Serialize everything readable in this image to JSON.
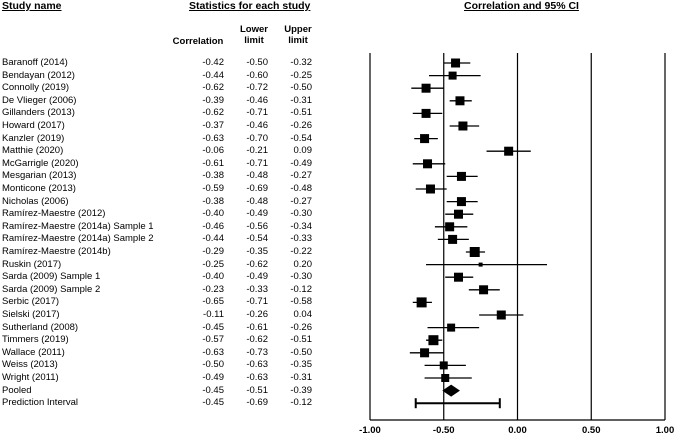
{
  "headers": {
    "study_name": "Study name",
    "statistics": "Statistics for each study",
    "ci": "Correlation and 95% CI",
    "col_correlation": "Correlation",
    "col_lower_1": "Lower",
    "col_lower_2": "limit",
    "col_upper_1": "Upper",
    "col_upper_2": "limit"
  },
  "chart_data": {
    "type": "forest",
    "title": "Correlation and 95% CI",
    "xlim": [
      -1.0,
      1.0
    ],
    "xticks": [
      "-1.00",
      "-0.50",
      "0.00",
      "0.50",
      "1.00"
    ],
    "xtick_values": [
      -1.0,
      -0.5,
      0.0,
      0.5,
      1.0
    ],
    "studies": [
      {
        "name": "Baranoff (2014)",
        "correlation": -0.42,
        "lower": -0.5,
        "upper": -0.32,
        "r": "-0.42",
        "lo": "-0.50",
        "hi": "-0.32",
        "box": 9
      },
      {
        "name": "Bendayan (2012)",
        "correlation": -0.44,
        "lower": -0.6,
        "upper": -0.25,
        "r": "-0.44",
        "lo": "-0.60",
        "hi": "-0.25",
        "box": 8
      },
      {
        "name": "Connolly (2019)",
        "correlation": -0.62,
        "lower": -0.72,
        "upper": -0.5,
        "r": "-0.62",
        "lo": "-0.72",
        "hi": "-0.50",
        "box": 9
      },
      {
        "name": "De Vlieger (2006)",
        "correlation": -0.39,
        "lower": -0.46,
        "upper": -0.31,
        "r": "-0.39",
        "lo": "-0.46",
        "hi": "-0.31",
        "box": 9
      },
      {
        "name": "Gillanders (2013)",
        "correlation": -0.62,
        "lower": -0.71,
        "upper": -0.51,
        "r": "-0.62",
        "lo": "-0.71",
        "hi": "-0.51",
        "box": 9
      },
      {
        "name": "Howard (2017)",
        "correlation": -0.37,
        "lower": -0.46,
        "upper": -0.26,
        "r": "-0.37",
        "lo": "-0.46",
        "hi": "-0.26",
        "box": 9
      },
      {
        "name": "Kanzler (2019)",
        "correlation": -0.63,
        "lower": -0.7,
        "upper": -0.54,
        "r": "-0.63",
        "lo": "-0.70",
        "hi": "-0.54",
        "box": 9
      },
      {
        "name": "Matthie (2020)",
        "correlation": -0.06,
        "lower": -0.21,
        "upper": 0.09,
        "r": "-0.06",
        "lo": "-0.21",
        "hi": "0.09",
        "box": 9
      },
      {
        "name": "McGarrigle (2020)",
        "correlation": -0.61,
        "lower": -0.71,
        "upper": -0.49,
        "r": "-0.61",
        "lo": "-0.71",
        "hi": "-0.49",
        "box": 9
      },
      {
        "name": "Mesgarian (2013)",
        "correlation": -0.38,
        "lower": -0.48,
        "upper": -0.27,
        "r": "-0.38",
        "lo": "-0.48",
        "hi": "-0.27",
        "box": 9
      },
      {
        "name": "Monticone (2013)",
        "correlation": -0.59,
        "lower": -0.69,
        "upper": -0.48,
        "r": "-0.59",
        "lo": "-0.69",
        "hi": "-0.48",
        "box": 9
      },
      {
        "name": "Nicholas (2006)",
        "correlation": -0.38,
        "lower": -0.48,
        "upper": -0.27,
        "r": "-0.38",
        "lo": "-0.48",
        "hi": "-0.27",
        "box": 9
      },
      {
        "name": "Ramírez-Maestre (2012)",
        "correlation": -0.4,
        "lower": -0.49,
        "upper": -0.3,
        "r": "-0.40",
        "lo": "-0.49",
        "hi": "-0.30",
        "box": 9
      },
      {
        "name": "Ramírez-Maestre (2014a) Sample 1",
        "correlation": -0.46,
        "lower": -0.56,
        "upper": -0.34,
        "r": "-0.46",
        "lo": "-0.56",
        "hi": "-0.34",
        "box": 9
      },
      {
        "name": "Ramírez-Maestre (2014a) Sample 2",
        "correlation": -0.44,
        "lower": -0.54,
        "upper": -0.33,
        "r": "-0.44",
        "lo": "-0.54",
        "hi": "-0.33",
        "box": 9
      },
      {
        "name": "Ramírez-Maestre (2014b)",
        "correlation": -0.29,
        "lower": -0.35,
        "upper": -0.22,
        "r": "-0.29",
        "lo": "-0.35",
        "hi": "-0.22",
        "box": 10
      },
      {
        "name": "Ruskin (2017)",
        "correlation": -0.25,
        "lower": -0.62,
        "upper": 0.2,
        "r": "-0.25",
        "lo": "-0.62",
        "hi": "0.20",
        "box": 4
      },
      {
        "name": "Sarda (2009) Sample 1",
        "correlation": -0.4,
        "lower": -0.49,
        "upper": -0.3,
        "r": "-0.40",
        "lo": "-0.49",
        "hi": "-0.30",
        "box": 9
      },
      {
        "name": "Sarda (2009) Sample 2",
        "correlation": -0.23,
        "lower": -0.33,
        "upper": -0.12,
        "r": "-0.23",
        "lo": "-0.33",
        "hi": "-0.12",
        "box": 9
      },
      {
        "name": "Serbic (2017)",
        "correlation": -0.65,
        "lower": -0.71,
        "upper": -0.58,
        "r": "-0.65",
        "lo": "-0.71",
        "hi": "-0.58",
        "box": 10
      },
      {
        "name": "Sielski (2017)",
        "correlation": -0.11,
        "lower": -0.26,
        "upper": 0.04,
        "r": "-0.11",
        "lo": "-0.26",
        "hi": "0.04",
        "box": 9
      },
      {
        "name": "Sutherland (2008)",
        "correlation": -0.45,
        "lower": -0.61,
        "upper": -0.26,
        "r": "-0.45",
        "lo": "-0.61",
        "hi": "-0.26",
        "box": 8
      },
      {
        "name": "Timmers (2019)",
        "correlation": -0.57,
        "lower": -0.62,
        "upper": -0.51,
        "r": "-0.57",
        "lo": "-0.62",
        "hi": "-0.51",
        "box": 10
      },
      {
        "name": "Wallace (2011)",
        "correlation": -0.63,
        "lower": -0.73,
        "upper": -0.5,
        "r": "-0.63",
        "lo": "-0.73",
        "hi": "-0.50",
        "box": 9
      },
      {
        "name": "Weiss (2013)",
        "correlation": -0.5,
        "lower": -0.63,
        "upper": -0.35,
        "r": "-0.50",
        "lo": "-0.63",
        "hi": "-0.35",
        "box": 8
      },
      {
        "name": "Wright (2011)",
        "correlation": -0.49,
        "lower": -0.63,
        "upper": -0.31,
        "r": "-0.49",
        "lo": "-0.63",
        "hi": "-0.31",
        "box": 8
      }
    ],
    "pooled": {
      "name": "Pooled",
      "correlation": -0.45,
      "lower": -0.51,
      "upper": -0.39,
      "r": "-0.45",
      "lo": "-0.51",
      "hi": "-0.39"
    },
    "prediction_interval": {
      "name": "Prediction Interval",
      "correlation": -0.45,
      "lower": -0.69,
      "upper": -0.12,
      "r": "-0.45",
      "lo": "-0.69",
      "hi": "-0.12"
    }
  }
}
